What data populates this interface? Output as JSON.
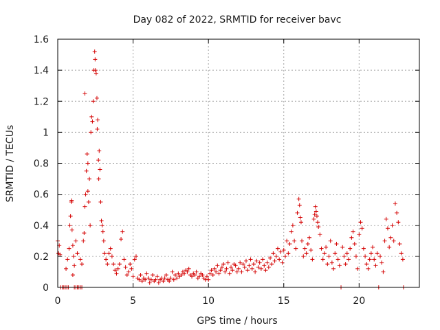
{
  "chart_data": {
    "type": "scatter",
    "title": "Day 082 of 2022, SRMTID for receiver bavc",
    "xlabel": "GPS time / hours",
    "ylabel": "SRMTID / TECUs",
    "xlim": [
      0,
      24
    ],
    "ylim": [
      0,
      1.6
    ],
    "x_ticks": [
      0,
      5,
      10,
      15,
      20
    ],
    "y_ticks": [
      0,
      0.2,
      0.4,
      0.6,
      0.8,
      1,
      1.2,
      1.4,
      1.6
    ],
    "x_tick_labels": [
      "0",
      "5",
      "10",
      "15",
      "20"
    ],
    "y_tick_labels": [
      "0",
      "0.2",
      "0.4",
      "0.6",
      "0.8",
      "1",
      "1.2",
      "1.4",
      "1.6"
    ],
    "grid": true,
    "marker": "plus",
    "color": "#d40000",
    "series": [
      {
        "name": "SRMTID",
        "points": [
          [
            0.0,
            0.3
          ],
          [
            0.05,
            0.22
          ],
          [
            0.1,
            0.27
          ],
          [
            0.15,
            0.21
          ],
          [
            0.2,
            0.0
          ],
          [
            0.3,
            0.0
          ],
          [
            0.4,
            0.0
          ],
          [
            0.5,
            0.0
          ],
          [
            0.6,
            0.0
          ],
          [
            0.7,
            0.0
          ],
          [
            0.55,
            0.12
          ],
          [
            0.65,
            0.18
          ],
          [
            0.75,
            0.25
          ],
          [
            0.8,
            0.4
          ],
          [
            0.85,
            0.46
          ],
          [
            0.9,
            0.55
          ],
          [
            0.92,
            0.56
          ],
          [
            0.95,
            0.37
          ],
          [
            1.0,
            0.27
          ],
          [
            1.05,
            0.2
          ],
          [
            1.1,
            0.14
          ],
          [
            1.0,
            0.08
          ],
          [
            1.1,
            0.0
          ],
          [
            1.2,
            0.0
          ],
          [
            1.3,
            0.0
          ],
          [
            1.4,
            0.0
          ],
          [
            1.5,
            0.0
          ],
          [
            1.6,
            0.0
          ],
          [
            1.2,
            0.3
          ],
          [
            1.3,
            0.22
          ],
          [
            1.5,
            0.18
          ],
          [
            1.6,
            0.15
          ],
          [
            1.7,
            0.3
          ],
          [
            1.75,
            0.35
          ],
          [
            1.8,
            0.52
          ],
          [
            1.85,
            0.6
          ],
          [
            1.9,
            0.75
          ],
          [
            1.95,
            0.86
          ],
          [
            2.0,
            0.62
          ],
          [
            2.05,
            0.55
          ],
          [
            2.1,
            0.7
          ],
          [
            2.15,
            0.4
          ],
          [
            1.8,
            1.25
          ],
          [
            2.0,
            0.8
          ],
          [
            2.2,
            1.0
          ],
          [
            2.25,
            1.1
          ],
          [
            2.3,
            1.07
          ],
          [
            2.35,
            1.2
          ],
          [
            2.4,
            1.4
          ],
          [
            2.45,
            1.52
          ],
          [
            2.48,
            1.47
          ],
          [
            2.5,
            1.4
          ],
          [
            2.55,
            1.38
          ],
          [
            2.6,
            1.22
          ],
          [
            2.62,
            1.02
          ],
          [
            2.65,
            1.08
          ],
          [
            2.7,
            0.82
          ],
          [
            2.72,
            0.7
          ],
          [
            2.75,
            0.88
          ],
          [
            2.8,
            0.76
          ],
          [
            2.85,
            0.55
          ],
          [
            2.9,
            0.43
          ],
          [
            2.95,
            0.4
          ],
          [
            3.0,
            0.36
          ],
          [
            3.05,
            0.3
          ],
          [
            3.1,
            0.22
          ],
          [
            3.2,
            0.18
          ],
          [
            3.3,
            0.15
          ],
          [
            3.4,
            0.22
          ],
          [
            3.5,
            0.25
          ],
          [
            3.6,
            0.2
          ],
          [
            3.7,
            0.15
          ],
          [
            3.8,
            0.11
          ],
          [
            3.9,
            0.09
          ],
          [
            4.0,
            0.12
          ],
          [
            4.1,
            0.15
          ],
          [
            4.2,
            0.31
          ],
          [
            4.3,
            0.36
          ],
          [
            4.4,
            0.18
          ],
          [
            4.5,
            0.13
          ],
          [
            4.6,
            0.08
          ],
          [
            4.7,
            0.1
          ],
          [
            4.8,
            0.15
          ],
          [
            4.9,
            0.12
          ],
          [
            5.0,
            0.07
          ],
          [
            5.1,
            0.18
          ],
          [
            5.2,
            0.2
          ],
          [
            5.3,
            0.06
          ],
          [
            5.4,
            0.05
          ],
          [
            5.5,
            0.08
          ],
          [
            5.6,
            0.04
          ],
          [
            5.7,
            0.06
          ],
          [
            5.8,
            0.05
          ],
          [
            5.9,
            0.09
          ],
          [
            6.0,
            0.06
          ],
          [
            6.1,
            0.03
          ],
          [
            6.2,
            0.05
          ],
          [
            6.3,
            0.08
          ],
          [
            6.4,
            0.04
          ],
          [
            6.5,
            0.05
          ],
          [
            6.6,
            0.07
          ],
          [
            6.7,
            0.03
          ],
          [
            6.8,
            0.05
          ],
          [
            6.9,
            0.06
          ],
          [
            7.0,
            0.04
          ],
          [
            7.1,
            0.06
          ],
          [
            7.2,
            0.08
          ],
          [
            7.3,
            0.05
          ],
          [
            7.4,
            0.04
          ],
          [
            7.5,
            0.06
          ],
          [
            7.6,
            0.1
          ],
          [
            7.7,
            0.05
          ],
          [
            7.8,
            0.08
          ],
          [
            7.9,
            0.06
          ],
          [
            8.0,
            0.09
          ],
          [
            8.1,
            0.07
          ],
          [
            8.2,
            0.08
          ],
          [
            8.3,
            0.1
          ],
          [
            8.4,
            0.09
          ],
          [
            8.5,
            0.11
          ],
          [
            8.6,
            0.1
          ],
          [
            8.7,
            0.12
          ],
          [
            8.8,
            0.08
          ],
          [
            8.9,
            0.07
          ],
          [
            9.0,
            0.09
          ],
          [
            9.1,
            0.08
          ],
          [
            9.2,
            0.1
          ],
          [
            9.3,
            0.06
          ],
          [
            9.4,
            0.07
          ],
          [
            9.5,
            0.09
          ],
          [
            9.6,
            0.08
          ],
          [
            9.7,
            0.06
          ],
          [
            9.8,
            0.05
          ],
          [
            9.9,
            0.07
          ],
          [
            10.0,
            0.05
          ],
          [
            10.1,
            0.09
          ],
          [
            10.2,
            0.11
          ],
          [
            10.3,
            0.08
          ],
          [
            10.4,
            0.12
          ],
          [
            10.5,
            0.1
          ],
          [
            10.6,
            0.14
          ],
          [
            10.7,
            0.09
          ],
          [
            10.8,
            0.11
          ],
          [
            10.9,
            0.13
          ],
          [
            11.0,
            0.15
          ],
          [
            11.1,
            0.1
          ],
          [
            11.2,
            0.12
          ],
          [
            11.3,
            0.16
          ],
          [
            11.4,
            0.09
          ],
          [
            11.5,
            0.13
          ],
          [
            11.6,
            0.11
          ],
          [
            11.7,
            0.15
          ],
          [
            11.8,
            0.14
          ],
          [
            11.9,
            0.1
          ],
          [
            12.0,
            0.12
          ],
          [
            12.1,
            0.16
          ],
          [
            12.2,
            0.1
          ],
          [
            12.3,
            0.15
          ],
          [
            12.4,
            0.13
          ],
          [
            12.5,
            0.17
          ],
          [
            12.6,
            0.11
          ],
          [
            12.7,
            0.14
          ],
          [
            12.8,
            0.18
          ],
          [
            12.9,
            0.12
          ],
          [
            13.0,
            0.15
          ],
          [
            13.1,
            0.1
          ],
          [
            13.2,
            0.17
          ],
          [
            13.3,
            0.13
          ],
          [
            13.4,
            0.16
          ],
          [
            13.5,
            0.12
          ],
          [
            13.6,
            0.18
          ],
          [
            13.7,
            0.14
          ],
          [
            13.8,
            0.11
          ],
          [
            13.9,
            0.16
          ],
          [
            14.0,
            0.13
          ],
          [
            14.1,
            0.19
          ],
          [
            14.2,
            0.15
          ],
          [
            14.3,
            0.22
          ],
          [
            14.4,
            0.17
          ],
          [
            14.5,
            0.2
          ],
          [
            14.6,
            0.25
          ],
          [
            14.7,
            0.18
          ],
          [
            14.8,
            0.23
          ],
          [
            14.9,
            0.16
          ],
          [
            15.0,
            0.24
          ],
          [
            15.1,
            0.2
          ],
          [
            15.2,
            0.3
          ],
          [
            15.3,
            0.22
          ],
          [
            15.4,
            0.28
          ],
          [
            15.5,
            0.36
          ],
          [
            15.6,
            0.4
          ],
          [
            15.7,
            0.3
          ],
          [
            15.8,
            0.25
          ],
          [
            15.9,
            0.48
          ],
          [
            16.0,
            0.57
          ],
          [
            16.05,
            0.53
          ],
          [
            16.1,
            0.45
          ],
          [
            16.15,
            0.42
          ],
          [
            16.2,
            0.3
          ],
          [
            16.3,
            0.2
          ],
          [
            16.4,
            0.25
          ],
          [
            16.5,
            0.22
          ],
          [
            16.6,
            0.28
          ],
          [
            16.7,
            0.32
          ],
          [
            16.8,
            0.24
          ],
          [
            16.9,
            0.18
          ],
          [
            17.0,
            0.44
          ],
          [
            17.05,
            0.47
          ],
          [
            17.1,
            0.52
          ],
          [
            17.15,
            0.49
          ],
          [
            17.2,
            0.46
          ],
          [
            17.25,
            0.42
          ],
          [
            17.3,
            0.39
          ],
          [
            17.4,
            0.34
          ],
          [
            17.5,
            0.25
          ],
          [
            17.6,
            0.18
          ],
          [
            17.7,
            0.22
          ],
          [
            17.8,
            0.26
          ],
          [
            17.9,
            0.15
          ],
          [
            18.0,
            0.2
          ],
          [
            18.1,
            0.3
          ],
          [
            18.2,
            0.16
          ],
          [
            18.3,
            0.12
          ],
          [
            18.4,
            0.22
          ],
          [
            18.5,
            0.28
          ],
          [
            18.6,
            0.18
          ],
          [
            18.7,
            0.14
          ],
          [
            18.8,
            0.0
          ],
          [
            18.9,
            0.26
          ],
          [
            19.0,
            0.2
          ],
          [
            19.1,
            0.15
          ],
          [
            19.2,
            0.22
          ],
          [
            19.3,
            0.18
          ],
          [
            19.4,
            0.25
          ],
          [
            19.5,
            0.32
          ],
          [
            19.6,
            0.36
          ],
          [
            19.7,
            0.28
          ],
          [
            19.8,
            0.2
          ],
          [
            19.9,
            0.12
          ],
          [
            20.0,
            0.34
          ],
          [
            20.1,
            0.42
          ],
          [
            20.2,
            0.38
          ],
          [
            20.3,
            0.25
          ],
          [
            20.4,
            0.2
          ],
          [
            20.5,
            0.15
          ],
          [
            20.6,
            0.12
          ],
          [
            20.7,
            0.18
          ],
          [
            20.8,
            0.22
          ],
          [
            20.9,
            0.26
          ],
          [
            21.0,
            0.18
          ],
          [
            21.1,
            0.14
          ],
          [
            21.2,
            0.22
          ],
          [
            21.3,
            0.0
          ],
          [
            21.4,
            0.2
          ],
          [
            21.5,
            0.16
          ],
          [
            21.6,
            0.1
          ],
          [
            21.7,
            0.3
          ],
          [
            21.8,
            0.44
          ],
          [
            21.9,
            0.38
          ],
          [
            22.0,
            0.26
          ],
          [
            22.1,
            0.32
          ],
          [
            22.2,
            0.4
          ],
          [
            22.3,
            0.3
          ],
          [
            22.4,
            0.54
          ],
          [
            22.5,
            0.48
          ],
          [
            22.6,
            0.42
          ],
          [
            22.7,
            0.28
          ],
          [
            22.8,
            0.22
          ],
          [
            22.9,
            0.18
          ],
          [
            22.95,
            0.0
          ]
        ]
      }
    ]
  }
}
